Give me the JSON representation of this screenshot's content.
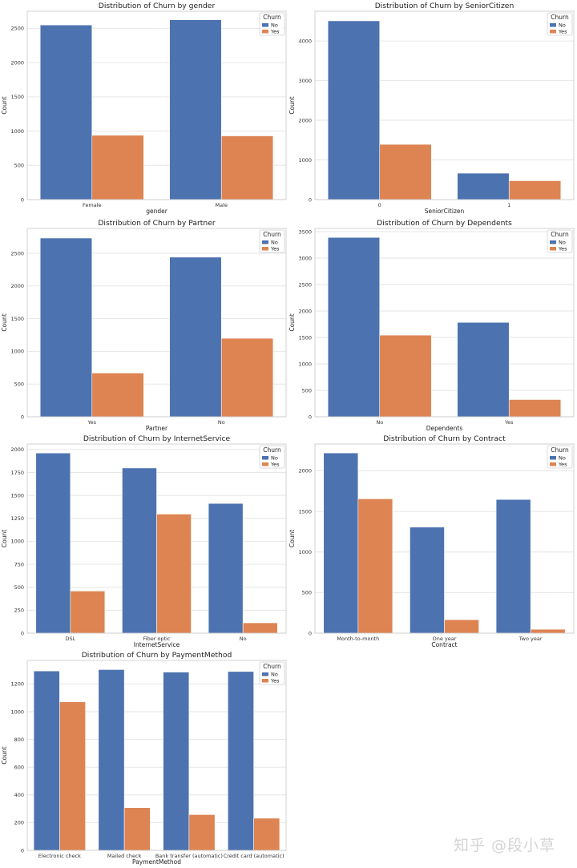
{
  "watermark": "知乎 @段小草",
  "colors": {
    "No": "#4c72b0",
    "Yes": "#dd8452"
  },
  "legend": {
    "title": "Churn",
    "labels": [
      "No",
      "Yes"
    ]
  },
  "chart_data": [
    {
      "type": "bar",
      "title": "Distribution of Churn by gender",
      "xlabel": "gender",
      "ylabel": "Count",
      "categories": [
        "Female",
        "Male"
      ],
      "ylim": [
        0,
        2750
      ],
      "yticks": [
        0,
        500,
        1000,
        1500,
        2000,
        2500
      ],
      "series": [
        {
          "name": "No",
          "values": [
            2549,
            2625
          ]
        },
        {
          "name": "Yes",
          "values": [
            939,
            930
          ]
        }
      ]
    },
    {
      "type": "bar",
      "title": "Distribution of Churn by SeniorCitizen",
      "xlabel": "SeniorCitizen",
      "ylabel": "Count",
      "categories": [
        "0",
        "1"
      ],
      "ylim": [
        0,
        4750
      ],
      "yticks": [
        0,
        1000,
        2000,
        3000,
        4000
      ],
      "series": [
        {
          "name": "No",
          "values": [
            4508,
            666
          ]
        },
        {
          "name": "Yes",
          "values": [
            1393,
            476
          ]
        }
      ]
    },
    {
      "type": "bar",
      "title": "Distribution of Churn by Partner",
      "xlabel": "Partner",
      "ylabel": "Count",
      "categories": [
        "Yes",
        "No"
      ],
      "ylim": [
        0,
        2880
      ],
      "yticks": [
        0,
        500,
        1000,
        1500,
        2000,
        2500
      ],
      "series": [
        {
          "name": "No",
          "values": [
            2733,
            2441
          ]
        },
        {
          "name": "Yes",
          "values": [
            669,
            1200
          ]
        }
      ]
    },
    {
      "type": "bar",
      "title": "Distribution of Churn by Dependents",
      "xlabel": "Dependents",
      "ylabel": "Count",
      "categories": [
        "No",
        "Yes"
      ],
      "ylim": [
        0,
        3560
      ],
      "yticks": [
        0,
        500,
        1000,
        1500,
        2000,
        2500,
        3000,
        3500
      ],
      "series": [
        {
          "name": "No",
          "values": [
            3390,
            1784
          ]
        },
        {
          "name": "Yes",
          "values": [
            1543,
            326
          ]
        }
      ]
    },
    {
      "type": "bar",
      "title": "Distribution of Churn by InternetService",
      "xlabel": "InternetService",
      "ylabel": "Count",
      "categories": [
        "DSL",
        "Fiber optic",
        "No"
      ],
      "ylim": [
        0,
        2060
      ],
      "yticks": [
        0,
        250,
        500,
        750,
        1000,
        1250,
        1500,
        1750,
        2000
      ],
      "series": [
        {
          "name": "No",
          "values": [
            1962,
            1799,
            1413
          ]
        },
        {
          "name": "Yes",
          "values": [
            459,
            1297,
            113
          ]
        }
      ]
    },
    {
      "type": "bar",
      "title": "Distribution of Churn by Contract",
      "xlabel": "Contract",
      "ylabel": "Count",
      "categories": [
        "Month-to-month",
        "One year",
        "Two year"
      ],
      "ylim": [
        0,
        2330
      ],
      "yticks": [
        0,
        500,
        1000,
        1500,
        2000
      ],
      "series": [
        {
          "name": "No",
          "values": [
            2220,
            1307,
            1647
          ]
        },
        {
          "name": "Yes",
          "values": [
            1655,
            166,
            48
          ]
        }
      ]
    },
    {
      "type": "bar",
      "title": "Distribution of Churn by PaymentMethod",
      "xlabel": "PaymentMethod",
      "ylabel": "Count",
      "categories": [
        "Electronic check",
        "Mailed check",
        "Bank transfer (automatic)",
        "Credit card (automatic)"
      ],
      "ylim": [
        0,
        1370
      ],
      "yticks": [
        0,
        200,
        400,
        600,
        800,
        1000,
        1200
      ],
      "series": [
        {
          "name": "No",
          "values": [
            1294,
            1304,
            1286,
            1290
          ]
        },
        {
          "name": "Yes",
          "values": [
            1071,
            308,
            258,
            232
          ]
        }
      ]
    }
  ]
}
